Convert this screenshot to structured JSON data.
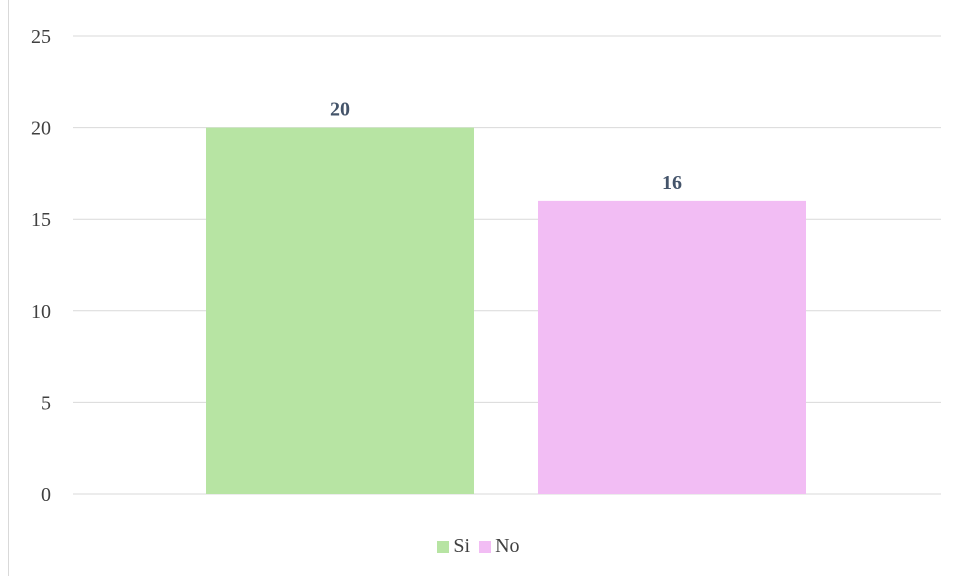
{
  "chart_data": {
    "type": "bar",
    "title": "",
    "xlabel": "",
    "ylabel": "",
    "categories": [
      ""
    ],
    "series": [
      {
        "name": "Si",
        "values": [
          20
        ],
        "color": "#b7e4a3"
      },
      {
        "name": "No",
        "values": [
          16
        ],
        "color": "#f2bdf4"
      }
    ],
    "ylim": [
      0,
      25
    ],
    "yticks": [
      "0",
      "5",
      "10",
      "15",
      "20",
      "25"
    ],
    "data_labels": [
      "20",
      "16"
    ],
    "grid": true,
    "legend_position": "bottom",
    "gridline_color": "#d9d9d9"
  }
}
